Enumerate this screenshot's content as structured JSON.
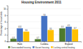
{
  "chart_data": {
    "type": "bar",
    "title": "Housing Environment 2011",
    "categories": [
      "Haile",
      "Cumbria",
      "England"
    ],
    "series": [
      {
        "name": "Overcrowded housing",
        "color": "#4e7a2e",
        "values": [
          0.8,
          0.7,
          4.0
        ],
        "value_labels": [
          "0.8",
          "0.7",
          "4.0"
        ]
      },
      {
        "name": "Vacant housing",
        "color": "#4472c4",
        "values": [
          4.01,
          7.8,
          4.5
        ],
        "value_labels": [
          "4.01",
          "7.8",
          "4.5"
        ]
      },
      {
        "name": "Lacking central heating",
        "color": "#ffc000",
        "values": [
          3.0,
          3.5,
          3.7
        ],
        "value_labels": [
          "3.0",
          "3.5",
          "3.7"
        ]
      }
    ],
    "ylabel": "Percentage of households",
    "ylim": [
      0,
      11
    ],
    "yticks": [
      0,
      2,
      4,
      6,
      8,
      10
    ],
    "grid": true,
    "legend": "bottom",
    "data_labels": true
  }
}
